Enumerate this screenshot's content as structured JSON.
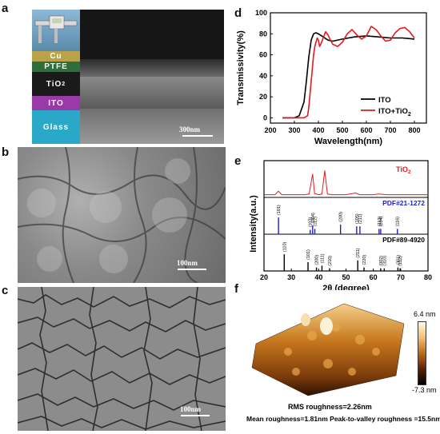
{
  "panels": {
    "a": {
      "label": "a",
      "layers": [
        "Cu",
        "PTFE",
        "TiO",
        "2",
        "ITO",
        "Glass"
      ],
      "scale": "300nm"
    },
    "b": {
      "label": "b",
      "scale": "100nm"
    },
    "c": {
      "label": "c",
      "scale": "100nm"
    },
    "d": {
      "label": "d"
    },
    "e": {
      "label": "e"
    },
    "f": {
      "label": "f",
      "rms": "RMS roughness=2.26nm",
      "mean": "Mean roughness=1.81nm  Peak-to-valley roughness =15.5nm",
      "cb_max": "6.4 nm",
      "cb_min": "-7.3 nm"
    }
  },
  "chart_data": [
    {
      "type": "line",
      "panel": "d",
      "xlabel": "Wavelength(nm)",
      "ylabel": "Transmissivity(%)",
      "xlim": [
        200,
        850
      ],
      "ylim": [
        -5,
        100
      ],
      "xticks": [
        200,
        300,
        400,
        500,
        600,
        700,
        800
      ],
      "yticks": [
        0,
        20,
        40,
        60,
        80,
        100
      ],
      "series": [
        {
          "name": "ITO",
          "color": "#000000",
          "x": [
            250,
            300,
            320,
            340,
            350,
            360,
            370,
            380,
            390,
            400,
            420,
            440,
            460,
            500,
            550,
            600,
            650,
            700,
            750,
            800
          ],
          "y": [
            0,
            0,
            2,
            15,
            35,
            58,
            74,
            80,
            81,
            80,
            77,
            74,
            73,
            75,
            77,
            78,
            77,
            76,
            76,
            75
          ]
        },
        {
          "name": "ITO+TiO2",
          "color": "#e31a1c",
          "x": [
            250,
            340,
            355,
            360,
            370,
            380,
            385,
            390,
            395,
            400,
            405,
            410,
            420,
            430,
            440,
            450,
            460,
            480,
            500,
            520,
            540,
            560,
            580,
            600,
            620,
            640,
            660,
            680,
            700,
            720,
            740,
            760,
            780,
            800
          ],
          "y": [
            0,
            0,
            2,
            10,
            35,
            60,
            68,
            72,
            76,
            74,
            68,
            70,
            76,
            82,
            79,
            74,
            70,
            68,
            72,
            80,
            84,
            79,
            75,
            78,
            87,
            84,
            78,
            73,
            74,
            81,
            85,
            86,
            82,
            76
          ]
        }
      ],
      "legend": [
        "ITO",
        "ITO+TiO"
      ],
      "legend_sub": "2",
      "legend_position": "bottom-right"
    },
    {
      "type": "line",
      "panel": "e",
      "xlabel": "2θ (degree)",
      "ylabel": "Intensity(a.u.)",
      "xlim": [
        20,
        80
      ],
      "xticks": [
        20,
        30,
        40,
        50,
        60,
        70,
        80
      ],
      "series": [
        {
          "name": "TiO",
          "name_sub": "2",
          "color": "#e31a1c",
          "x": [
            20,
            24,
            25.3,
            26.5,
            30,
            35,
            36.5,
            37.8,
            38.5,
            40,
            41.2,
            42.2,
            43.2,
            45,
            50,
            53.5,
            55,
            60,
            62,
            65,
            70,
            75,
            80
          ],
          "y": [
            2,
            2,
            8,
            2,
            2,
            2,
            3,
            38,
            4,
            2,
            3,
            44,
            3,
            2,
            2,
            5,
            2,
            2,
            3,
            2,
            2,
            2,
            2
          ]
        }
      ],
      "references": [
        {
          "name": "PDF#21-1272",
          "color": "#1f1fcc",
          "peaks": [
            {
              "x": 25.3,
              "h": 0.95,
              "label": "(101)"
            },
            {
              "x": 36.9,
              "h": 0.25,
              "label": "(103)"
            },
            {
              "x": 37.8,
              "h": 0.5,
              "label": "(004)"
            },
            {
              "x": 38.6,
              "h": 0.3,
              "label": "(112)"
            },
            {
              "x": 48.0,
              "h": 0.55,
              "label": "(200)"
            },
            {
              "x": 53.9,
              "h": 0.45,
              "label": "(105)"
            },
            {
              "x": 55.1,
              "h": 0.45,
              "label": "(211)"
            },
            {
              "x": 62.1,
              "h": 0.3,
              "label": "(213)"
            },
            {
              "x": 62.7,
              "h": 0.3,
              "label": "(204)"
            },
            {
              "x": 68.8,
              "h": 0.3,
              "label": "(116)"
            }
          ]
        },
        {
          "name": "PDF#89-4920",
          "color": "#000000",
          "peaks": [
            {
              "x": 27.4,
              "h": 0.95,
              "label": "(110)"
            },
            {
              "x": 36.1,
              "h": 0.5,
              "label": "(101)"
            },
            {
              "x": 39.2,
              "h": 0.2,
              "label": "(200)"
            },
            {
              "x": 41.2,
              "h": 0.3,
              "label": "(111)"
            },
            {
              "x": 44.0,
              "h": 0.15,
              "label": "(210)"
            },
            {
              "x": 54.3,
              "h": 0.6,
              "label": "(211)"
            },
            {
              "x": 56.6,
              "h": 0.2,
              "label": "(220)"
            },
            {
              "x": 62.7,
              "h": 0.15,
              "label": "(002)"
            },
            {
              "x": 64.0,
              "h": 0.15,
              "label": "(310)"
            },
            {
              "x": 69.0,
              "h": 0.2,
              "label": "(301)"
            },
            {
              "x": 69.8,
              "h": 0.15,
              "label": "(112)"
            }
          ]
        }
      ]
    }
  ]
}
